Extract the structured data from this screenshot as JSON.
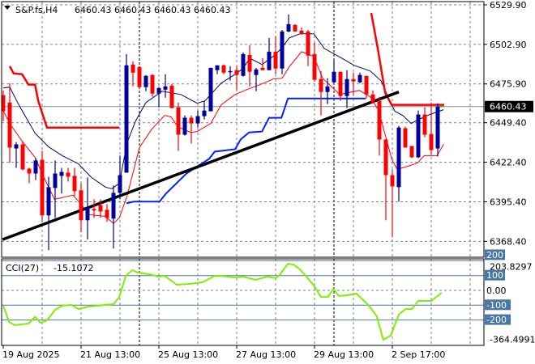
{
  "header": {
    "symbol": "S&P.fs,H4",
    "ohlc_text": "6460.43 6460.43 6460.43 6460.43"
  },
  "colors": {
    "bull": "#0000a0",
    "bear": "#ff0000",
    "ma_fast": "#ff0000",
    "ma_slow": "#000080",
    "stop_red": "#ff0000",
    "stop_blue": "#0022ff",
    "trendline": "#000000",
    "cci": "#80ee00",
    "grid": "#7a8290",
    "level": "#4a77a6"
  },
  "chart_data": [
    {
      "type": "candlestick",
      "title": "S&P.fs,H4",
      "price_range": [
        6358.5,
        6531.5
      ],
      "price_ticks": [
        "6529.90",
        "6502.90",
        "6475.90",
        "6449.40",
        "6422.40",
        "6395.40",
        "6368.40"
      ],
      "current_price": "6460.43",
      "date_ticks": [
        {
          "index": 0,
          "label": "19 Aug 2025"
        },
        {
          "index": 12,
          "label": "21 Aug 13:00"
        },
        {
          "index": 24,
          "label": "25 Aug 13:00"
        },
        {
          "index": 36,
          "label": "27 Aug 13:00"
        },
        {
          "index": 48,
          "label": "29 Aug 13:00"
        },
        {
          "index": 60,
          "label": "2 Sep 17:00"
        }
      ],
      "grid_every": 6,
      "separators": [
        21,
        51
      ],
      "candles_ohlc": [
        [
          6468.2,
          6471.5,
          6450.5,
          6457.2
        ],
        [
          6463.2,
          6476.4,
          6421.9,
          6432.4
        ],
        [
          6431.8,
          6436.2,
          6418.6,
          6434.6
        ],
        [
          6434.6,
          6436.8,
          6416.9,
          6417.5
        ],
        [
          6418.0,
          6418.6,
          6408.1,
          6414.7
        ],
        [
          6414.7,
          6425.2,
          6410.3,
          6423.6
        ],
        [
          6424.1,
          6430.2,
          6381.7,
          6386.1
        ],
        [
          6386.1,
          6412.5,
          6362.4,
          6405.4
        ],
        [
          6404.8,
          6423.6,
          6384.4,
          6414.7
        ],
        [
          6413.1,
          6418.6,
          6401.0,
          6415.8
        ],
        [
          6415.3,
          6418.6,
          6409.2,
          6412.5
        ],
        [
          6413.1,
          6418.6,
          6399.3,
          6402.6
        ],
        [
          6403.2,
          6408.1,
          6374.5,
          6382.8
        ],
        [
          6382.8,
          6412.0,
          6369.6,
          6391.6
        ],
        [
          6390.5,
          6397.1,
          6384.4,
          6389.4
        ],
        [
          6393.2,
          6397.1,
          6384.4,
          6388.8
        ],
        [
          6389.9,
          6393.8,
          6381.7,
          6384.4
        ],
        [
          6383.9,
          6406.5,
          6363.5,
          6401.5
        ],
        [
          6401.5,
          6426.9,
          6397.1,
          6413.6
        ],
        [
          6415.3,
          6496.3,
          6415.3,
          6488.6
        ],
        [
          6489.1,
          6491.3,
          6474.2,
          6483.6
        ],
        [
          6487.5,
          6487.5,
          6473.7,
          6473.7
        ],
        [
          6473.7,
          6482.0,
          6470.9,
          6481.4
        ],
        [
          6482.0,
          6482.5,
          6467.1,
          6469.3
        ],
        [
          6469.3,
          6473.7,
          6459.9,
          6473.1
        ],
        [
          6472.0,
          6482.5,
          6466.5,
          6474.2
        ],
        [
          6474.8,
          6475.9,
          6459.4,
          6459.4
        ],
        [
          6459.9,
          6463.2,
          6430.2,
          6441.2
        ],
        [
          6441.2,
          6454.4,
          6440.6,
          6452.8
        ],
        [
          6452.8,
          6454.4,
          6435.1,
          6448.9
        ],
        [
          6448.9,
          6457.7,
          6446.1,
          6453.9
        ],
        [
          6453.9,
          6464.3,
          6451.7,
          6457.7
        ],
        [
          6457.2,
          6486.9,
          6457.2,
          6486.9
        ],
        [
          6485.3,
          6488.6,
          6482.5,
          6488.6
        ],
        [
          6488.6,
          6489.1,
          6482.5,
          6483.6
        ],
        [
          6484.2,
          6488.0,
          6478.1,
          6484.7
        ],
        [
          6485.3,
          6488.0,
          6471.5,
          6482.0
        ],
        [
          6481.4,
          6497.4,
          6480.9,
          6496.3
        ],
        [
          6495.7,
          6502.3,
          6474.2,
          6484.2
        ],
        [
          6482.0,
          6486.9,
          6470.9,
          6485.8
        ],
        [
          6486.9,
          6493.5,
          6485.3,
          6485.3
        ],
        [
          6485.3,
          6507.3,
          6485.3,
          6497.9
        ],
        [
          6497.9,
          6508.4,
          6482.5,
          6486.4
        ],
        [
          6486.4,
          6512.8,
          6482.5,
          6511.7
        ],
        [
          6511.7,
          6523.3,
          6511.2,
          6516.7
        ],
        [
          6516.1,
          6516.7,
          6511.7,
          6511.7
        ],
        [
          6512.3,
          6514.5,
          6509.5,
          6510.1
        ],
        [
          6511.7,
          6512.8,
          6488.0,
          6495.2
        ],
        [
          6496.3,
          6504.0,
          6477.6,
          6478.7
        ],
        [
          6479.2,
          6484.7,
          6454.4,
          6470.4
        ],
        [
          6470.4,
          6479.8,
          6462.1,
          6474.2
        ],
        [
          6477.0,
          6492.4,
          6476.4,
          6484.2
        ],
        [
          6484.2,
          6484.2,
          6464.3,
          6467.6
        ],
        [
          6467.6,
          6485.3,
          6459.4,
          6479.2
        ],
        [
          6479.2,
          6483.6,
          6468.2,
          6477.6
        ],
        [
          6477.0,
          6483.6,
          6476.4,
          6482.0
        ],
        [
          6481.4,
          6481.4,
          6466.0,
          6468.7
        ],
        [
          6468.7,
          6471.5,
          6462.7,
          6463.2
        ],
        [
          6464.3,
          6467.1,
          6426.9,
          6437.9
        ],
        [
          6437.9,
          6438.4,
          6382.8,
          6413.6
        ],
        [
          6413.6,
          6417.5,
          6371.2,
          6405.9
        ],
        [
          6405.4,
          6447.2,
          6395.5,
          6446.1
        ],
        [
          6445.6,
          6446.7,
          6432.4,
          6432.4
        ],
        [
          6433.5,
          6433.5,
          6425.2,
          6425.8
        ],
        [
          6425.8,
          6457.7,
          6425.2,
          6455.0
        ],
        [
          6455.0,
          6459.9,
          6439.5,
          6441.2
        ],
        [
          6441.7,
          6463.2,
          6427.4,
          6430.7
        ],
        [
          6431.8,
          6462.7,
          6426.3,
          6460.4
        ]
      ],
      "ma_slow": [
        [
          0,
          6473.1
        ],
        [
          1,
          6473.7
        ],
        [
          2.4,
          6461.6
        ],
        [
          4.9,
          6442.3
        ],
        [
          7,
          6432.9
        ],
        [
          9.1,
          6426.9
        ],
        [
          11.6,
          6421.3
        ],
        [
          13.6,
          6412.0
        ],
        [
          15.75,
          6405.4
        ],
        [
          16.75,
          6404.3
        ],
        [
          17.9,
          6408.1
        ],
        [
          19.1,
          6435.7
        ],
        [
          20.4,
          6450.5
        ],
        [
          22,
          6463.2
        ],
        [
          24.5,
          6470.9
        ],
        [
          27.4,
          6468.7
        ],
        [
          29.9,
          6462.7
        ],
        [
          31.1,
          6464.3
        ],
        [
          33.6,
          6476.4
        ],
        [
          35.75,
          6482.5
        ],
        [
          37,
          6486.4
        ],
        [
          38,
          6493.5
        ],
        [
          39.9,
          6489.1
        ],
        [
          41.6,
          6494.6
        ],
        [
          42.9,
          6500.1
        ],
        [
          44.1,
          6507.3
        ],
        [
          45.75,
          6510.1
        ],
        [
          47.9,
          6510.1
        ],
        [
          49.5,
          6500.1
        ],
        [
          52.4,
          6493.0
        ],
        [
          54.1,
          6488.6
        ],
        [
          56.6,
          6484.7
        ],
        [
          58.25,
          6478.1
        ],
        [
          59.5,
          6465.4
        ],
        [
          60.4,
          6457.2
        ],
        [
          61.6,
          6454.4
        ],
        [
          62.9,
          6448.9
        ],
        [
          64.1,
          6451.7
        ],
        [
          65.75,
          6455.0
        ],
        [
          67.9,
          6458.3
        ]
      ],
      "ma_fast": [
        [
          0,
          6457.7
        ],
        [
          1,
          6448.9
        ],
        [
          2.9,
          6436.8
        ],
        [
          4.9,
          6425.8
        ],
        [
          6.1,
          6413.6
        ],
        [
          7.9,
          6397.1
        ],
        [
          10.75,
          6399.9
        ],
        [
          12,
          6393.8
        ],
        [
          13.25,
          6386.6
        ],
        [
          15.75,
          6385.5
        ],
        [
          17,
          6380.6
        ],
        [
          17.9,
          6384.4
        ],
        [
          19.1,
          6399.3
        ],
        [
          21,
          6432.4
        ],
        [
          22.9,
          6445.0
        ],
        [
          24.9,
          6454.4
        ],
        [
          25.9,
          6453.3
        ],
        [
          26.9,
          6446.7
        ],
        [
          28.9,
          6442.8
        ],
        [
          29.9,
          6443.4
        ],
        [
          32,
          6448.9
        ],
        [
          33.6,
          6461.6
        ],
        [
          35.75,
          6468.7
        ],
        [
          37.9,
          6472.6
        ],
        [
          39.9,
          6475.9
        ],
        [
          41.6,
          6479.2
        ],
        [
          43,
          6479.8
        ],
        [
          44.1,
          6487.5
        ],
        [
          46,
          6497.9
        ],
        [
          47.9,
          6494.6
        ],
        [
          49.25,
          6479.8
        ],
        [
          49.9,
          6477.0
        ],
        [
          51.9,
          6468.7
        ],
        [
          54.9,
          6471.5
        ],
        [
          56.6,
          6467.1
        ],
        [
          57.9,
          6457.7
        ],
        [
          59.9,
          6424.7
        ],
        [
          60.75,
          6417.5
        ],
        [
          62,
          6419.1
        ],
        [
          63.9,
          6421.9
        ],
        [
          64.9,
          6426.9
        ],
        [
          66.9,
          6426.9
        ],
        [
          67.9,
          6434.6
        ]
      ],
      "stop_red": [
        [
          [
            1,
            6488.0
          ],
          [
            1.6,
            6483.1
          ],
          [
            2.9,
            6482.5
          ],
          [
            3.9,
            6475.4
          ],
          [
            4.9,
            6475.4
          ],
          [
            5.4,
            6464.3
          ],
          [
            6,
            6456.1
          ],
          [
            6.75,
            6446.1
          ],
          [
            17.9,
            6446.1
          ]
        ],
        [
          [
            56.75,
            6524.4
          ],
          [
            57.75,
            6500.1
          ],
          [
            58.9,
            6469.8
          ],
          [
            59.9,
            6461.6
          ],
          [
            68,
            6461.6
          ]
        ]
      ],
      "stop_blue": [
        [
          19,
          6394.3
        ],
        [
          20.1,
          6395.5
        ],
        [
          24.1,
          6395.5
        ],
        [
          25.1,
          6401.0
        ],
        [
          28.25,
          6414.7
        ],
        [
          31.75,
          6424.7
        ],
        [
          32.6,
          6429.6
        ],
        [
          35.75,
          6431.3
        ],
        [
          36.6,
          6437.9
        ],
        [
          37.9,
          6442.8
        ],
        [
          39.9,
          6443.4
        ],
        [
          41,
          6452.8
        ],
        [
          42.9,
          6452.8
        ],
        [
          43.9,
          6466.0
        ],
        [
          55.9,
          6466.0
        ]
      ],
      "trendline": [
        [
          -0.1,
          6369.6
        ],
        [
          61,
          6470.4
        ]
      ]
    },
    {
      "type": "line",
      "title": "CCI(27)",
      "current_value": "-15.1072",
      "range": [
        -364.4991,
        203.8297
      ],
      "range_labels": [
        "203.8297",
        "-364.4991"
      ],
      "levels": [
        {
          "value": 200,
          "label": "200"
        },
        {
          "value": 100,
          "label": "100"
        },
        {
          "value": -100,
          "label": "-100"
        },
        {
          "value": -200,
          "label": "-200"
        }
      ],
      "zero_label": "0.00",
      "values": [
        [
          0,
          -104
        ],
        [
          0.9,
          -213
        ],
        [
          1.75,
          -235
        ],
        [
          3.9,
          -224
        ],
        [
          4.9,
          -180
        ],
        [
          5.75,
          -219
        ],
        [
          6.75,
          -202
        ],
        [
          8,
          -131
        ],
        [
          9.1,
          -104
        ],
        [
          10.5,
          -98
        ],
        [
          11.6,
          -126
        ],
        [
          13.25,
          -109
        ],
        [
          15.75,
          -98
        ],
        [
          17,
          -93
        ],
        [
          17.9,
          -44
        ],
        [
          18.9,
          98
        ],
        [
          19.9,
          137
        ],
        [
          20.75,
          120
        ],
        [
          22.6,
          109
        ],
        [
          23.9,
          93
        ],
        [
          24.9,
          98
        ],
        [
          26.75,
          38
        ],
        [
          28.9,
          44
        ],
        [
          30.75,
          55
        ],
        [
          32.6,
          98
        ],
        [
          33.6,
          98
        ],
        [
          35.75,
          87
        ],
        [
          37,
          93
        ],
        [
          38.9,
          71
        ],
        [
          40.75,
          93
        ],
        [
          42,
          82
        ],
        [
          42.6,
          104
        ],
        [
          43.9,
          180
        ],
        [
          44.75,
          175
        ],
        [
          45.75,
          142
        ],
        [
          46.75,
          93
        ],
        [
          48,
          27
        ],
        [
          49,
          -44
        ],
        [
          50.1,
          -44
        ],
        [
          50.9,
          11
        ],
        [
          51.75,
          -38
        ],
        [
          53,
          -33
        ],
        [
          54.5,
          -22
        ],
        [
          56.4,
          -104
        ],
        [
          57.6,
          -175
        ],
        [
          58.6,
          -333
        ],
        [
          59.75,
          -306
        ],
        [
          61,
          -164
        ],
        [
          62,
          -126
        ],
        [
          63,
          -126
        ],
        [
          64,
          -71
        ],
        [
          66,
          -71
        ],
        [
          67.6,
          -16
        ]
      ]
    }
  ]
}
